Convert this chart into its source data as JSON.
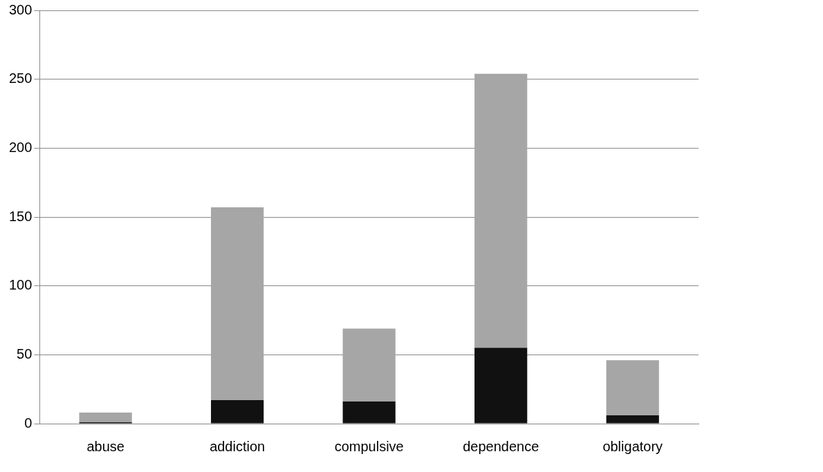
{
  "chart_data": {
    "type": "bar",
    "stacked": true,
    "categories": [
      "abuse",
      "addiction",
      "compulsive",
      "dependence",
      "obligatory"
    ],
    "series": [
      {
        "color": "#111111",
        "values": [
          1,
          17,
          16,
          55,
          6
        ]
      },
      {
        "color": "#a6a6a6",
        "values": [
          7,
          140,
          53,
          199,
          40
        ]
      }
    ],
    "ylim": [
      0,
      300
    ],
    "yticks": [
      0,
      50,
      100,
      150,
      200,
      250,
      300
    ],
    "grid": "y",
    "legend": false
  }
}
